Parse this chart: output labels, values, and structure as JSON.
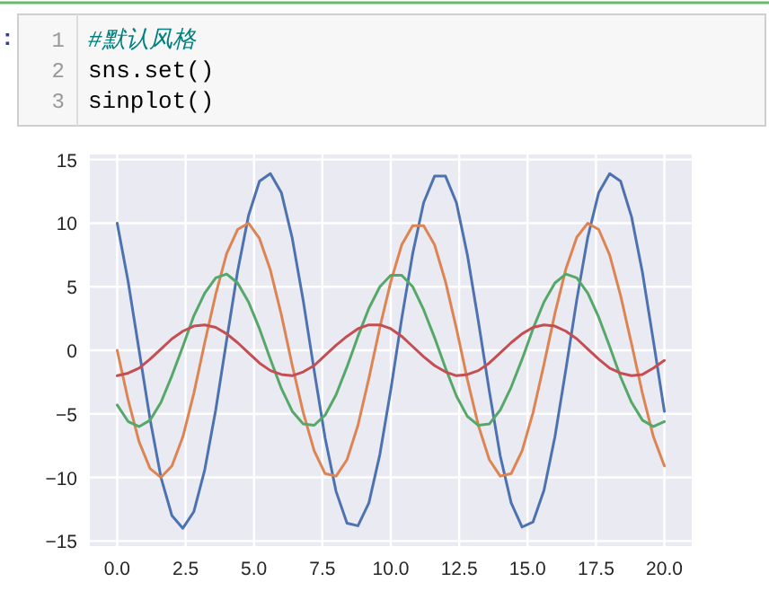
{
  "chart_data": {
    "type": "line",
    "x": [
      0,
      0.4,
      0.8,
      1.2,
      1.6,
      2,
      2.4,
      2.8,
      3.2,
      3.6,
      4,
      4.4,
      4.8,
      5.2,
      5.6,
      6,
      6.4,
      6.8,
      7.2,
      7.6,
      8,
      8.4,
      8.8,
      9.2,
      9.6,
      10,
      10.4,
      10.8,
      11.2,
      11.6,
      12,
      12.4,
      12.8,
      13.2,
      13.6,
      14,
      14.4,
      14.8,
      15.2,
      15.6,
      16,
      16.4,
      16.8,
      17.2,
      17.6,
      18,
      18.4,
      18.8,
      19.2,
      19.6,
      20
    ],
    "series": [
      {
        "color": "#4c72b0",
        "values": [
          10.0,
          5.4,
          0.0,
          -5.4,
          -10.0,
          -13.0,
          -14.0,
          -12.7,
          -9.4,
          -4.7,
          0.8,
          6.2,
          10.6,
          13.3,
          13.9,
          12.4,
          8.8,
          3.9,
          -1.6,
          -6.9,
          -11.1,
          -13.6,
          -13.8,
          -12.0,
          -8.2,
          -3.1,
          2.5,
          7.6,
          11.6,
          13.7,
          13.7,
          11.6,
          7.5,
          2.3,
          -3.2,
          -8.3,
          -12.0,
          -13.9,
          -13.5,
          -11.0,
          -6.8,
          -1.5,
          4.0,
          8.9,
          12.4,
          13.9,
          13.3,
          10.5,
          6.1,
          0.7,
          -4.8
        ]
      },
      {
        "color": "#dd8452",
        "values": [
          0.0,
          -3.9,
          -7.2,
          -9.3,
          -10.0,
          -9.1,
          -6.8,
          -3.4,
          0.6,
          4.4,
          7.6,
          9.5,
          10.0,
          8.8,
          6.3,
          2.8,
          -1.2,
          -4.9,
          -7.9,
          -9.7,
          -9.9,
          -8.6,
          -5.9,
          -2.2,
          1.8,
          5.4,
          8.3,
          9.8,
          9.8,
          8.3,
          5.4,
          1.7,
          -2.3,
          -5.9,
          -8.6,
          -9.9,
          -9.7,
          -7.9,
          -4.9,
          -1.1,
          2.9,
          6.4,
          8.9,
          10.0,
          9.5,
          7.5,
          4.3,
          0.5,
          -3.4,
          -6.8,
          -9.1
        ]
      },
      {
        "color": "#55a868",
        "values": [
          -4.3,
          -5.6,
          -6.0,
          -5.5,
          -4.1,
          -2.0,
          0.3,
          2.7,
          4.5,
          5.7,
          6.0,
          5.3,
          3.8,
          1.7,
          -0.7,
          -3.0,
          -4.8,
          -5.8,
          -5.9,
          -5.1,
          -3.5,
          -1.3,
          1.1,
          3.3,
          5.0,
          5.9,
          5.9,
          5.0,
          3.2,
          1.0,
          -1.4,
          -3.6,
          -5.2,
          -5.9,
          -5.8,
          -4.7,
          -2.9,
          -0.7,
          1.7,
          3.8,
          5.3,
          6.0,
          5.7,
          4.5,
          2.6,
          0.3,
          -2.1,
          -4.1,
          -5.5,
          -6.0,
          -5.6
        ]
      },
      {
        "color": "#c44e52",
        "values": [
          -2.0,
          -1.8,
          -1.4,
          -0.7,
          0.1,
          0.9,
          1.5,
          1.9,
          2.0,
          1.8,
          1.3,
          0.6,
          -0.2,
          -1.0,
          -1.6,
          -1.9,
          -2.0,
          -1.7,
          -1.2,
          -0.4,
          0.4,
          1.1,
          1.7,
          2.0,
          2.0,
          1.7,
          1.1,
          0.3,
          -0.5,
          -1.2,
          -1.7,
          -2.0,
          -1.9,
          -1.6,
          -1.0,
          -0.2,
          0.6,
          1.3,
          1.8,
          2.0,
          1.9,
          1.5,
          0.9,
          0.1,
          -0.7,
          -1.4,
          -1.8,
          -2.0,
          -1.9,
          -1.4,
          -0.8
        ]
      }
    ],
    "xlim": [
      -1,
      21
    ],
    "ylim": [
      -15.4,
      15.4
    ],
    "xticks": [
      {
        "value": 0,
        "label": "0.0"
      },
      {
        "value": 2.5,
        "label": "2.5"
      },
      {
        "value": 5,
        "label": "5.0"
      },
      {
        "value": 7.5,
        "label": "7.5"
      },
      {
        "value": 10,
        "label": "10.0"
      },
      {
        "value": 12.5,
        "label": "12.5"
      },
      {
        "value": 15,
        "label": "15.0"
      },
      {
        "value": 17.5,
        "label": "17.5"
      },
      {
        "value": 20,
        "label": "20.0"
      }
    ],
    "yticks": [
      {
        "value": -15,
        "label": "−15"
      },
      {
        "value": -10,
        "label": "−10"
      },
      {
        "value": -5,
        "label": "−5"
      },
      0,
      5,
      10,
      15
    ],
    "grid": true,
    "annotations": [
      ":",
      "1",
      "#默认风格",
      "2",
      "sns.set()",
      "3",
      "sinplot()"
    ]
  }
}
